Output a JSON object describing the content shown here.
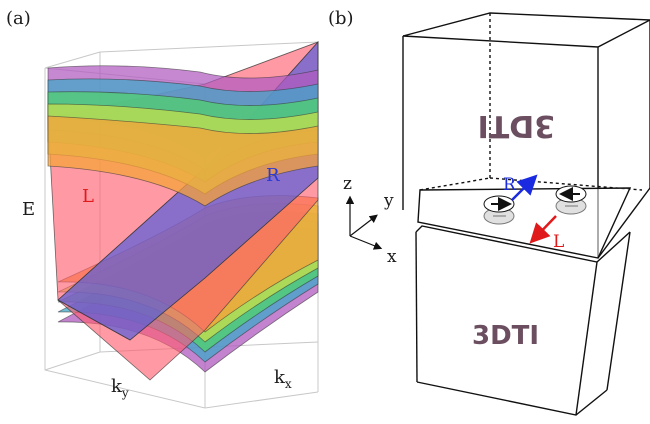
{
  "panel_a": {
    "tag": "(a)",
    "axis_e": "E",
    "axis_ky": "k",
    "axis_ky_sub": "y",
    "axis_kx": "k",
    "axis_kx_sub": "x",
    "label_l": "L",
    "label_r": "R",
    "colors": {
      "left_cone": "#ff5c6e",
      "right_cone": "#5b5fd6",
      "bands": [
        "#b05abf",
        "#3fa7c9",
        "#4fd36b",
        "#c9e04a",
        "#f5a23a"
      ],
      "label_l": "#e01a1a",
      "label_r": "#2a3bd6"
    }
  },
  "panel_b": {
    "tag": "(b)",
    "top_block_text": "3DTI",
    "bottom_block_text": "3DTI",
    "axis_z": "z",
    "axis_y": "y",
    "axis_x": "x",
    "label_r": "R",
    "label_l": "L",
    "colors": {
      "label_r": "#1a2ae0",
      "label_l": "#e01a1a",
      "block_text": "#6b4e60"
    }
  }
}
